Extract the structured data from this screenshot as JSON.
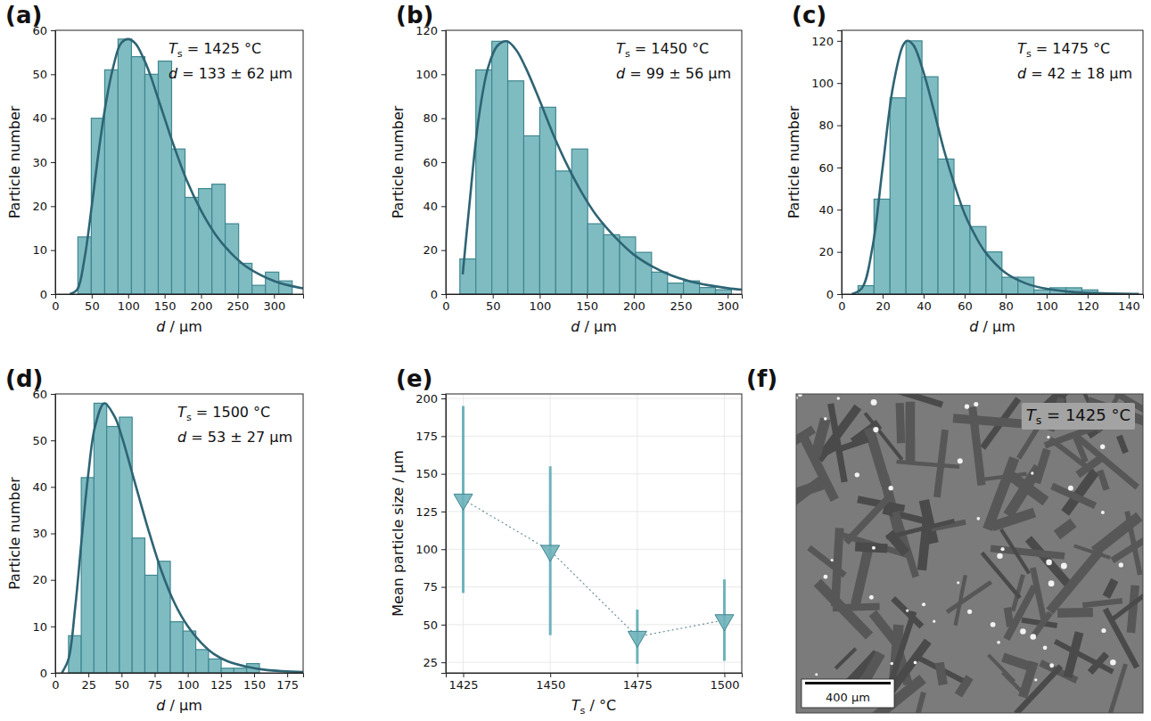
{
  "chart_data": [
    {
      "type": "histogram",
      "panel": "(a)",
      "x_label": [
        "d",
        " / μm"
      ],
      "y_label": "Particle number",
      "annotations": [
        [
          "T",
          "s",
          " = 1425 °C"
        ],
        [
          "d",
          " = 133 ± 62 μm"
        ]
      ],
      "bins": [
        31,
        49.4,
        67.8,
        86.1,
        104.5,
        122.9,
        141.3,
        159.6,
        178,
        196.4,
        214.8,
        233.1,
        251.5,
        269.9,
        288.3,
        306.6,
        325
      ],
      "counts": [
        13,
        40,
        51,
        58,
        54,
        50,
        53,
        33,
        22,
        24,
        25,
        16,
        7,
        2,
        5,
        3
      ],
      "color": "#7fbcc2",
      "fit": {
        "x": [
          20,
          30,
          40,
          50,
          60,
          70,
          80,
          90,
          100,
          110,
          120,
          130,
          140,
          150,
          160,
          180,
          200,
          220,
          240,
          260,
          280,
          300,
          320,
          340
        ],
        "y": [
          0,
          1,
          8,
          20,
          33,
          44,
          52,
          57,
          58,
          57,
          54,
          50,
          45,
          40,
          35,
          26,
          19,
          13.5,
          9.5,
          6.5,
          4.5,
          3,
          2,
          1.3
        ],
        "color": "#2e6474"
      },
      "xlim": [
        0,
        340
      ],
      "xticks": [
        0,
        50,
        100,
        150,
        200,
        250,
        300
      ],
      "ylim": [
        0,
        60
      ],
      "yticks": [
        0,
        10,
        20,
        30,
        40,
        50,
        60
      ]
    },
    {
      "type": "histogram",
      "panel": "(b)",
      "x_label": [
        "d",
        " / μm"
      ],
      "y_label": "Particle number",
      "annotations": [
        [
          "T",
          "s",
          " = 1450 °C"
        ],
        [
          "d",
          " = 99 ± 56 μm"
        ]
      ],
      "bins": [
        15,
        32,
        49,
        66,
        83,
        100,
        117,
        134,
        151,
        168,
        185,
        202,
        219,
        236,
        253,
        270,
        287,
        304
      ],
      "counts": [
        16,
        102,
        115,
        97,
        72,
        85,
        56,
        66,
        32,
        27,
        26,
        19,
        10,
        5,
        6,
        3,
        2
      ],
      "color": "#7fbcc2",
      "fit": {
        "x": [
          18,
          25,
          35,
          45,
          55,
          65,
          75,
          85,
          100,
          115,
          130,
          145,
          160,
          180,
          200,
          220,
          240,
          260,
          280,
          300,
          315
        ],
        "y": [
          9,
          40,
          80,
          103,
          113,
          115,
          111,
          103,
          88,
          72,
          58,
          46,
          36,
          26,
          18,
          12.5,
          8.5,
          5.8,
          4,
          2.7,
          2
        ],
        "color": "#2e6474"
      },
      "xlim": [
        0,
        315
      ],
      "xticks": [
        0,
        50,
        100,
        150,
        200,
        250,
        300
      ],
      "ylim": [
        0,
        120
      ],
      "yticks": [
        0,
        20,
        40,
        60,
        80,
        100,
        120
      ]
    },
    {
      "type": "histogram",
      "panel": "(c)",
      "x_label": [
        "d",
        " / μm"
      ],
      "y_label": "Particle number",
      "annotations": [
        [
          "T",
          "s",
          " = 1475 °C"
        ],
        [
          "d",
          " = 42 ± 18 μm"
        ]
      ],
      "bins": [
        8,
        15.8,
        23.6,
        31.4,
        39.2,
        47,
        54.8,
        62.6,
        70.4,
        78.2,
        86,
        93.8,
        101.6,
        109.4,
        117.2,
        125
      ],
      "counts": [
        4,
        45,
        93,
        120,
        103,
        64,
        42,
        32,
        20,
        8,
        8,
        2,
        3,
        3,
        2
      ],
      "color": "#7fbcc2",
      "fit": {
        "x": [
          5,
          10,
          15,
          20,
          25,
          30,
          32,
          35,
          40,
          45,
          50,
          55,
          60,
          65,
          70,
          80,
          90,
          100,
          110,
          120,
          130,
          145
        ],
        "y": [
          0,
          3,
          22,
          60,
          98,
          118,
          120,
          118,
          105,
          87,
          68,
          52,
          38,
          28,
          20,
          10,
          5,
          2.5,
          1.2,
          0.6,
          0.3,
          0.1
        ],
        "color": "#2e6474"
      },
      "xlim": [
        0,
        147
      ],
      "xticks": [
        0,
        20,
        40,
        60,
        80,
        100,
        120,
        140
      ],
      "ylim": [
        0,
        125
      ],
      "yticks": [
        0,
        20,
        40,
        60,
        80,
        100,
        120
      ]
    },
    {
      "type": "histogram",
      "panel": "(d)",
      "x_label": [
        "d",
        " / μm"
      ],
      "y_label": "Particle number",
      "annotations": [
        [
          "T",
          "s",
          " = 1500 °C"
        ],
        [
          "d",
          " = 53 ± 27 μm"
        ]
      ],
      "bins": [
        10,
        19.6,
        29.2,
        38.8,
        48.4,
        58,
        67.6,
        77.2,
        86.8,
        96.4,
        106,
        115.6,
        125.2,
        134.8,
        144.4,
        154
      ],
      "counts": [
        8,
        42,
        58,
        53,
        55,
        29,
        21,
        24,
        11,
        9,
        5,
        3,
        1,
        1,
        2
      ],
      "color": "#7fbcc2",
      "fit": {
        "x": [
          5,
          10,
          15,
          20,
          25,
          30,
          37,
          45,
          50,
          60,
          70,
          80,
          90,
          100,
          110,
          120,
          130,
          145,
          160,
          187
        ],
        "y": [
          0,
          3,
          14,
          29,
          43,
          53,
          58,
          55,
          51,
          41,
          31,
          22,
          15,
          10,
          6.5,
          4,
          2.5,
          1.3,
          0.6,
          0.2
        ],
        "color": "#2e6474"
      },
      "xlim": [
        0,
        187
      ],
      "xticks": [
        0,
        25,
        50,
        75,
        100,
        125,
        150,
        175
      ],
      "ylim": [
        0,
        60
      ],
      "yticks": [
        0,
        10,
        20,
        30,
        40,
        50,
        60
      ]
    },
    {
      "type": "scatter",
      "panel": "(e)",
      "x_label": [
        "T",
        "s",
        " / °C"
      ],
      "y_label": "Mean particle size / μm",
      "x": [
        1425,
        1450,
        1475,
        1500
      ],
      "values": [
        133,
        99,
        42,
        53
      ],
      "errors": [
        62,
        56,
        18,
        27
      ],
      "color": "#6fb3bb",
      "marker": "triangle-down",
      "line_style": "dotted",
      "grid": true,
      "xlim": [
        1420,
        1505
      ],
      "xticks": [
        1425,
        1450,
        1475,
        1500
      ],
      "ylim": [
        18,
        203
      ],
      "yticks": [
        25,
        50,
        75,
        100,
        125,
        150,
        175,
        200
      ]
    },
    {
      "type": "image",
      "panel": "(f)",
      "annotations": [
        [
          "T",
          "s",
          " = 1425 °C"
        ]
      ],
      "scale_bar": "400 μm"
    }
  ]
}
